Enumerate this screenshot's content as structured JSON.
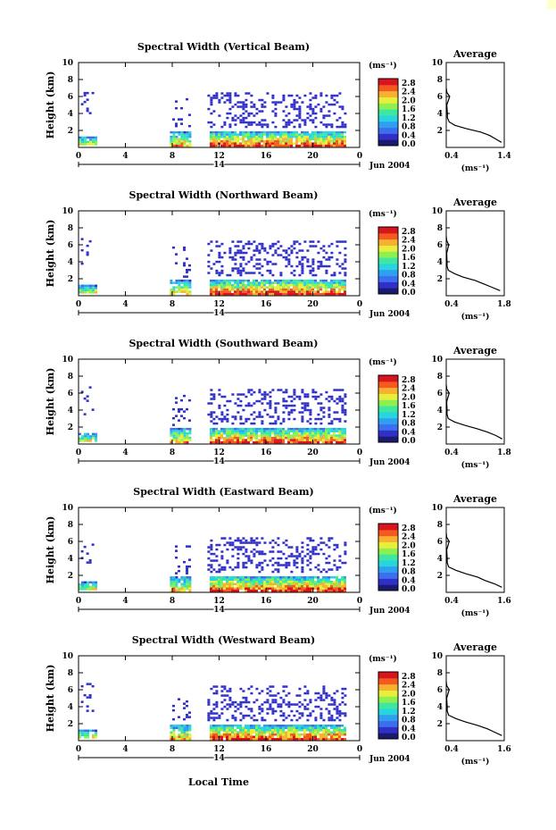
{
  "figure": {
    "xlabel": "Local Time",
    "date_label": "14",
    "month_label": "Jun 2004",
    "colorbar_unit": "(ms⁻¹)",
    "colorbar_ticks": [
      "0.0",
      "0.4",
      "0.8",
      "1.2",
      "1.6",
      "2.0",
      "2.4",
      "2.8"
    ],
    "average_title": "Average",
    "average_xlabel": "(ms⁻¹)"
  },
  "chart_data": [
    {
      "type": "heatmap",
      "title": "Spectral Width (Vertical Beam)",
      "ylabel": "Height (km)",
      "x_ticks": [
        "0",
        "4",
        "8",
        "12",
        "16",
        "20",
        "0"
      ],
      "y_ticks": [
        "2",
        "4",
        "6",
        "8",
        "10"
      ],
      "xlim": [
        0,
        24
      ],
      "ylim": [
        0,
        10
      ],
      "value_range": [
        0.0,
        2.8
      ],
      "profile": {
        "xlim": [
          0.4,
          1.4
        ],
        "x_ticks": [
          "0.4",
          "1.4"
        ],
        "y_ticks": [
          "2",
          "4",
          "6",
          "8",
          "10"
        ],
        "heights": [
          0.6,
          1.0,
          1.4,
          1.8,
          2.2,
          2.6,
          3.0,
          3.5,
          4.0,
          5.0,
          6.0,
          6.5,
          7.0
        ],
        "values": [
          1.35,
          1.25,
          1.15,
          1.0,
          0.75,
          0.55,
          0.45,
          0.42,
          0.42,
          0.41,
          0.46,
          0.41,
          0.4
        ]
      }
    },
    {
      "type": "heatmap",
      "title": "Spectral Width (Northward Beam)",
      "ylabel": "Height (km)",
      "x_ticks": [
        "0",
        "4",
        "8",
        "12",
        "16",
        "20",
        "0"
      ],
      "y_ticks": [
        "2",
        "4",
        "6",
        "8",
        "10"
      ],
      "xlim": [
        0,
        24
      ],
      "ylim": [
        0,
        10
      ],
      "value_range": [
        0.0,
        2.8
      ],
      "profile": {
        "xlim": [
          0.4,
          1.8
        ],
        "x_ticks": [
          "0.4",
          "1.8"
        ],
        "y_ticks": [
          "2",
          "4",
          "6",
          "8",
          "10"
        ],
        "heights": [
          0.6,
          1.0,
          1.4,
          1.8,
          2.2,
          2.6,
          3.0,
          3.5,
          4.0,
          5.0,
          6.0,
          6.5,
          7.0
        ],
        "values": [
          1.7,
          1.5,
          1.3,
          1.1,
          0.8,
          0.6,
          0.45,
          0.42,
          0.42,
          0.41,
          0.46,
          0.41,
          0.4
        ]
      }
    },
    {
      "type": "heatmap",
      "title": "Spectral Width (Southward Beam)",
      "ylabel": "Height (km)",
      "x_ticks": [
        "0",
        "4",
        "8",
        "12",
        "16",
        "20",
        "0"
      ],
      "y_ticks": [
        "2",
        "4",
        "6",
        "8",
        "10"
      ],
      "xlim": [
        0,
        24
      ],
      "ylim": [
        0,
        10
      ],
      "value_range": [
        0.0,
        2.8
      ],
      "profile": {
        "xlim": [
          0.4,
          1.8
        ],
        "x_ticks": [
          "0.4",
          "1.8"
        ],
        "y_ticks": [
          "2",
          "4",
          "6",
          "8",
          "10"
        ],
        "heights": [
          0.6,
          1.0,
          1.4,
          1.8,
          2.2,
          2.6,
          3.0,
          3.5,
          4.0,
          5.0,
          6.0,
          6.5,
          7.0
        ],
        "values": [
          1.75,
          1.6,
          1.4,
          1.15,
          0.85,
          0.6,
          0.45,
          0.42,
          0.42,
          0.41,
          0.47,
          0.41,
          0.4
        ]
      }
    },
    {
      "type": "heatmap",
      "title": "Spectral Width (Eastward Beam)",
      "ylabel": "Height (km)",
      "x_ticks": [
        "0",
        "4",
        "8",
        "12",
        "16",
        "20",
        "0"
      ],
      "y_ticks": [
        "2",
        "4",
        "6",
        "8",
        "10"
      ],
      "xlim": [
        0,
        24
      ],
      "ylim": [
        0,
        10
      ],
      "value_range": [
        0.0,
        2.8
      ],
      "profile": {
        "xlim": [
          0.4,
          1.6
        ],
        "x_ticks": [
          "0.4",
          "1.6"
        ],
        "y_ticks": [
          "2",
          "4",
          "6",
          "8",
          "10"
        ],
        "heights": [
          0.6,
          1.0,
          1.4,
          1.8,
          2.2,
          2.6,
          3.0,
          3.5,
          4.0,
          5.0,
          6.0,
          6.5,
          7.0
        ],
        "values": [
          1.55,
          1.4,
          1.2,
          1.05,
          0.8,
          0.6,
          0.45,
          0.42,
          0.42,
          0.41,
          0.46,
          0.41,
          0.4
        ]
      }
    },
    {
      "type": "heatmap",
      "title": "Spectral Width (Westward Beam)",
      "ylabel": "Height (km)",
      "x_ticks": [
        "0",
        "4",
        "8",
        "12",
        "16",
        "20",
        "0"
      ],
      "y_ticks": [
        "2",
        "4",
        "6",
        "8",
        "10"
      ],
      "xlim": [
        0,
        24
      ],
      "ylim": [
        0,
        10
      ],
      "value_range": [
        0.0,
        2.8
      ],
      "profile": {
        "xlim": [
          0.4,
          1.6
        ],
        "x_ticks": [
          "0.4",
          "1.6"
        ],
        "y_ticks": [
          "2",
          "4",
          "6",
          "8",
          "10"
        ],
        "heights": [
          0.6,
          1.0,
          1.4,
          1.8,
          2.2,
          2.6,
          3.0,
          3.5,
          4.0,
          5.0,
          6.0,
          6.5,
          7.0
        ],
        "values": [
          1.55,
          1.4,
          1.25,
          1.05,
          0.8,
          0.6,
          0.45,
          0.42,
          0.42,
          0.41,
          0.46,
          0.41,
          0.4
        ]
      }
    }
  ]
}
